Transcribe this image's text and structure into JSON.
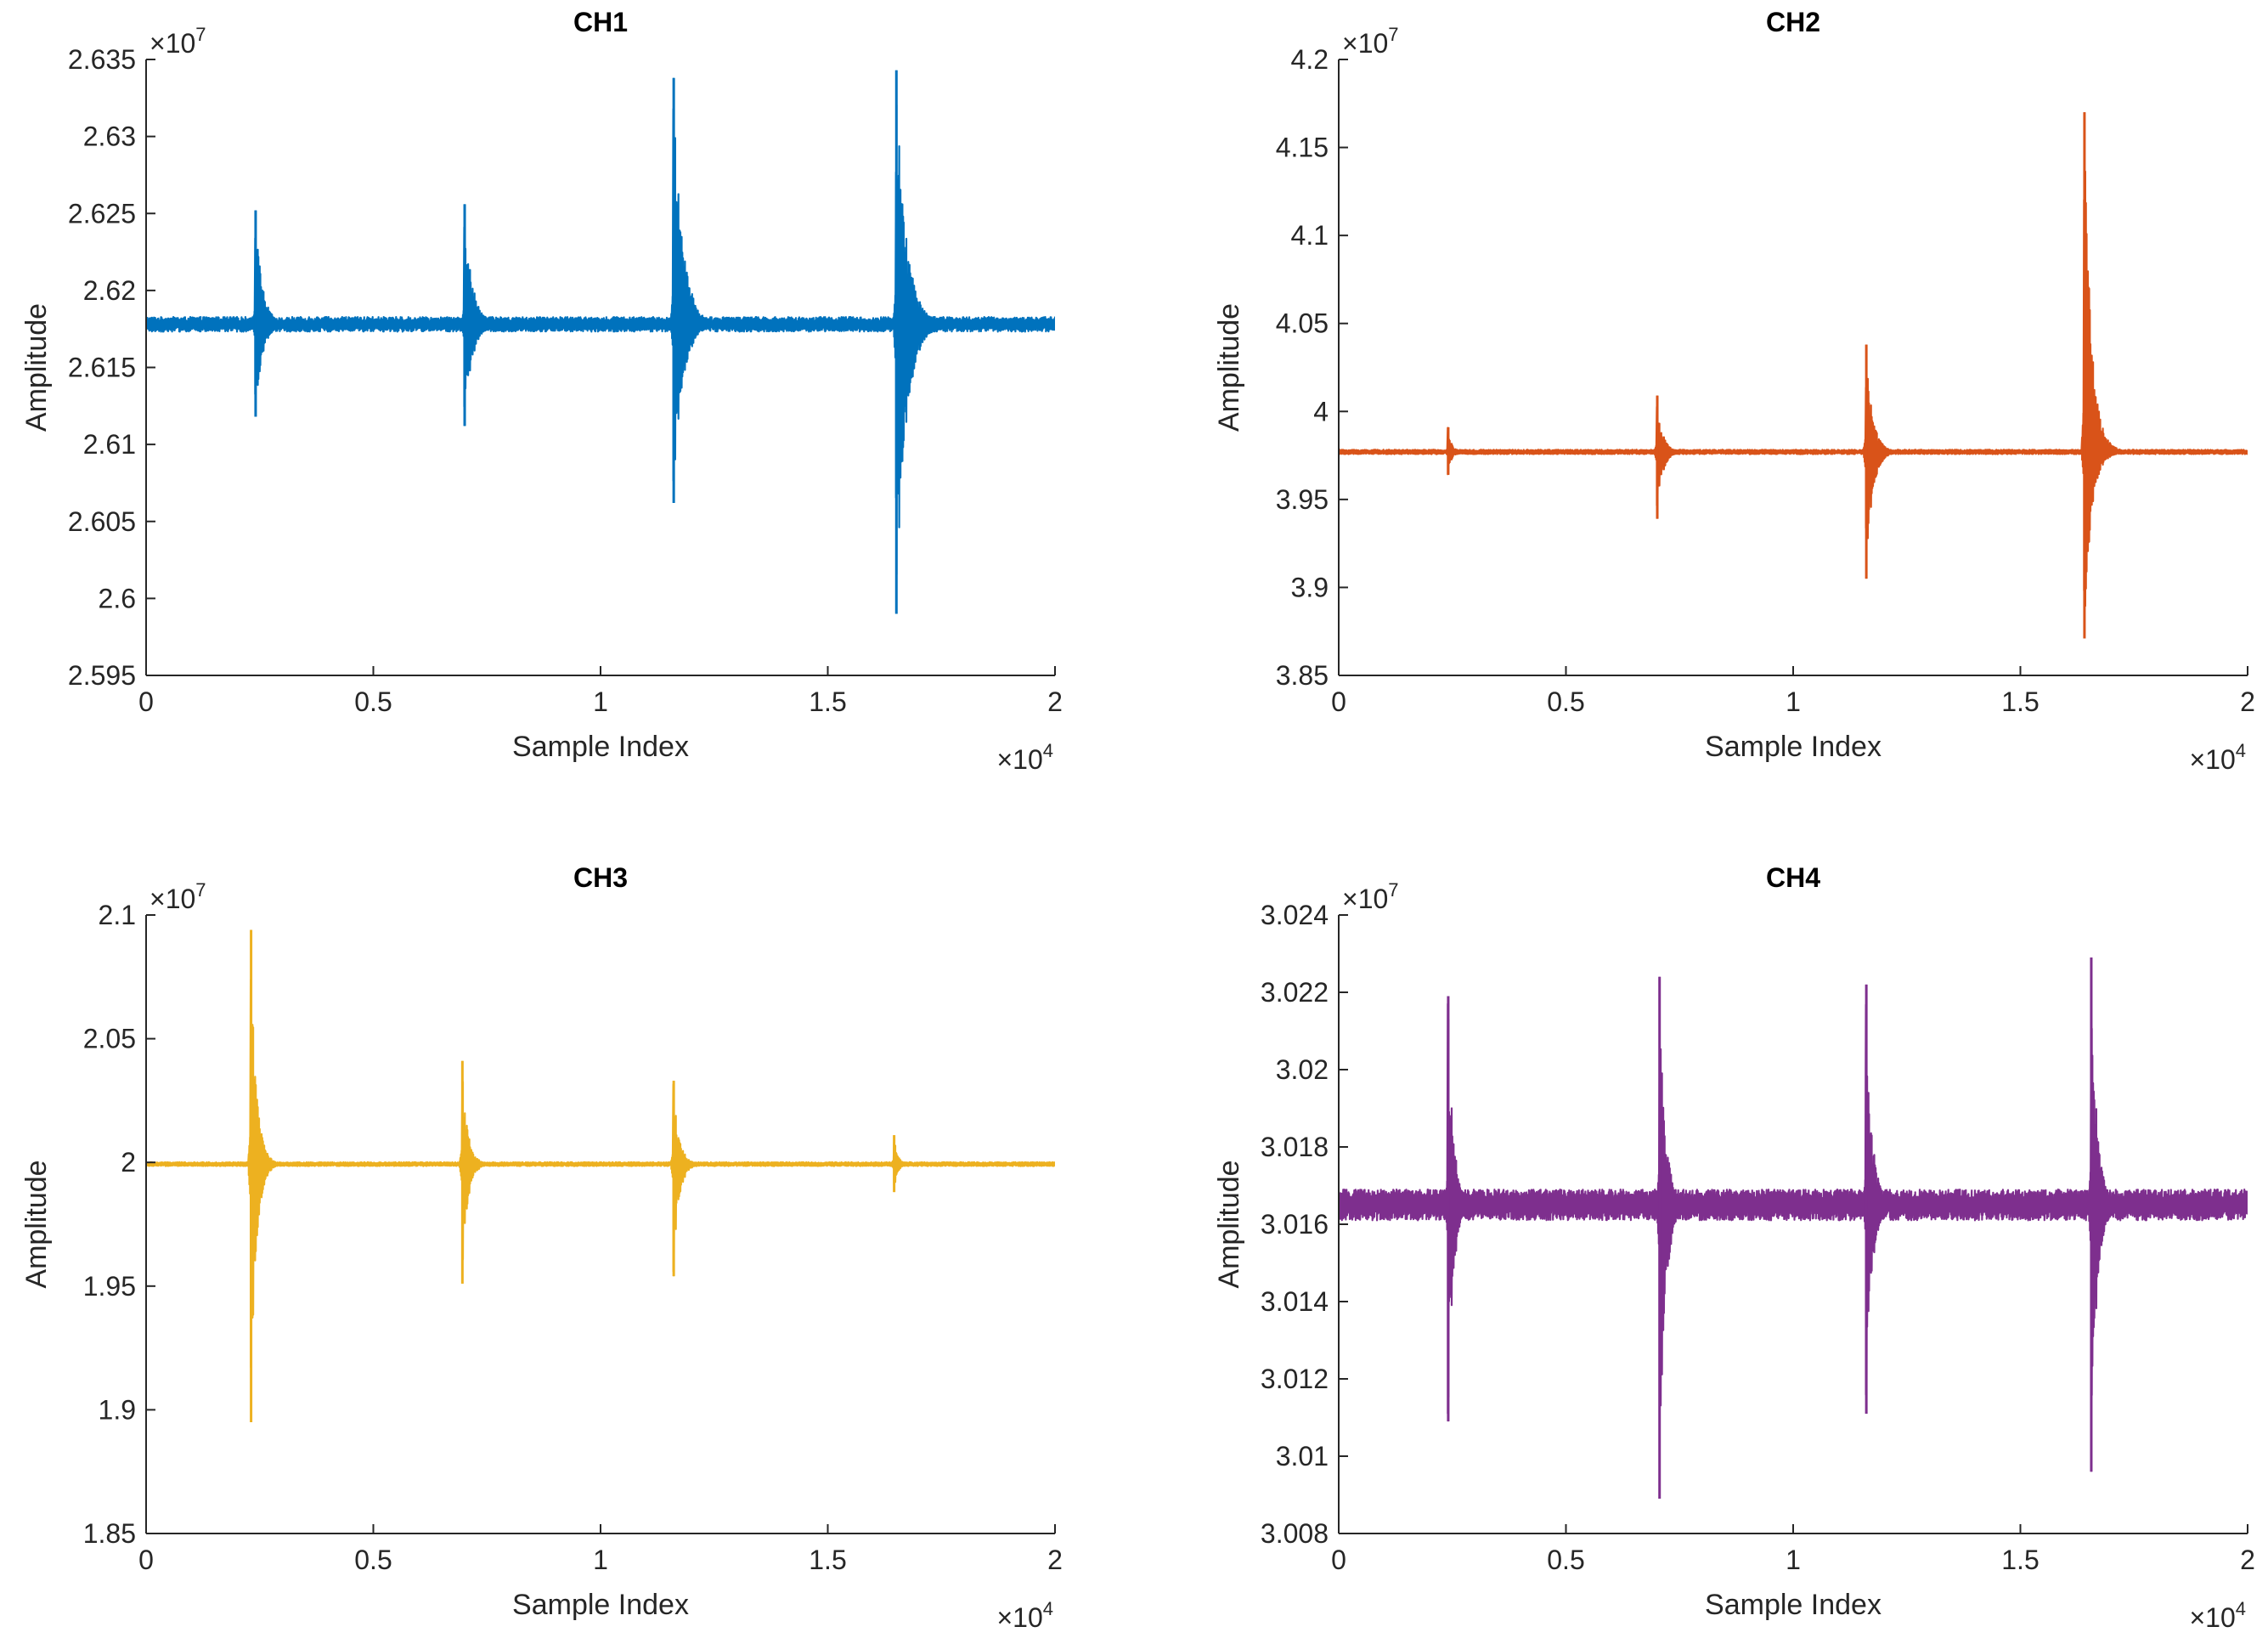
{
  "figure": {
    "xlabel": "Sample Index",
    "ylabel": "Amplitude",
    "x_exponent_base": "×10",
    "x_exponent": "4",
    "y_exponent_base": "×10",
    "y_exponent": "7",
    "axis_color": "#262626"
  },
  "chart_data": [
    {
      "type": "line",
      "name": "ch1",
      "title": "CH1",
      "color": "#0072BD",
      "xlim": [
        0,
        2
      ],
      "ylim": [
        2.595,
        2.635
      ],
      "xticks": [
        "0",
        "0.5",
        "1",
        "1.5",
        "2"
      ],
      "xtick_values": [
        0,
        0.5,
        1,
        1.5,
        2
      ],
      "yticks": [
        "2.595",
        "2.6",
        "2.605",
        "2.61",
        "2.615",
        "2.62",
        "2.625",
        "2.63",
        "2.635"
      ],
      "ytick_values": [
        2.595,
        2.6,
        2.605,
        2.61,
        2.615,
        2.62,
        2.625,
        2.63,
        2.635
      ],
      "baseline": 2.6178,
      "noise": 0.0003,
      "bursts": [
        {
          "x": 0.24,
          "max": 2.6252,
          "min": 2.6118,
          "decay": 0.015
        },
        {
          "x": 0.7,
          "max": 2.6256,
          "min": 2.6112,
          "decay": 0.017
        },
        {
          "x": 1.16,
          "max": 2.6338,
          "min": 2.6062,
          "decay": 0.02
        },
        {
          "x": 1.65,
          "max": 2.6343,
          "min": 2.599,
          "decay": 0.022
        }
      ]
    },
    {
      "type": "line",
      "name": "ch2",
      "title": "CH2",
      "color": "#D95319",
      "xlim": [
        0,
        2
      ],
      "ylim": [
        3.85,
        4.2
      ],
      "xticks": [
        "0",
        "0.5",
        "1",
        "1.5",
        "2"
      ],
      "xtick_values": [
        0,
        0.5,
        1,
        1.5,
        2
      ],
      "yticks": [
        "3.85",
        "3.9",
        "3.95",
        "4",
        "4.05",
        "4.1",
        "4.15",
        "4.2"
      ],
      "ytick_values": [
        3.85,
        3.9,
        3.95,
        4.0,
        4.05,
        4.1,
        4.15,
        4.2
      ],
      "baseline": 3.977,
      "noise": 0.0008,
      "bursts": [
        {
          "x": 0.24,
          "max": 3.991,
          "min": 3.964,
          "decay": 0.008
        },
        {
          "x": 0.7,
          "max": 4.009,
          "min": 3.939,
          "decay": 0.012
        },
        {
          "x": 1.16,
          "max": 4.038,
          "min": 3.905,
          "decay": 0.014
        },
        {
          "x": 1.64,
          "max": 4.17,
          "min": 3.871,
          "decay": 0.016
        }
      ]
    },
    {
      "type": "line",
      "name": "ch3",
      "title": "CH3",
      "color": "#EDB120",
      "xlim": [
        0,
        2
      ],
      "ylim": [
        1.85,
        2.1
      ],
      "xticks": [
        "0",
        "0.5",
        "1",
        "1.5",
        "2"
      ],
      "xtick_values": [
        0,
        0.5,
        1,
        1.5,
        2
      ],
      "yticks": [
        "1.85",
        "1.9",
        "1.95",
        "2",
        "2.05",
        "2.1"
      ],
      "ytick_values": [
        1.85,
        1.9,
        1.95,
        2.0,
        2.05,
        2.1
      ],
      "baseline": 1.9993,
      "noise": 0.0005,
      "bursts": [
        {
          "x": 0.23,
          "max": 2.094,
          "min": 1.895,
          "decay": 0.012
        },
        {
          "x": 0.695,
          "max": 2.041,
          "min": 1.951,
          "decay": 0.012
        },
        {
          "x": 1.16,
          "max": 2.033,
          "min": 1.954,
          "decay": 0.012
        },
        {
          "x": 1.645,
          "max": 2.011,
          "min": 1.988,
          "decay": 0.008
        }
      ]
    },
    {
      "type": "line",
      "name": "ch4",
      "title": "CH4",
      "color": "#7E2F8E",
      "xlim": [
        0,
        2
      ],
      "ylim": [
        3.008,
        3.024
      ],
      "xticks": [
        "0",
        "0.5",
        "1",
        "1.5",
        "2"
      ],
      "xtick_values": [
        0,
        0.5,
        1,
        1.5,
        2
      ],
      "yticks": [
        "3.008",
        "3.01",
        "3.012",
        "3.014",
        "3.016",
        "3.018",
        "3.02",
        "3.022",
        "3.024"
      ],
      "ytick_values": [
        3.008,
        3.01,
        3.012,
        3.014,
        3.016,
        3.018,
        3.02,
        3.022,
        3.024
      ],
      "baseline": 3.0165,
      "noise": 0.00025,
      "bursts": [
        {
          "x": 0.24,
          "max": 3.0219,
          "min": 3.0109,
          "decay": 0.012
        },
        {
          "x": 0.705,
          "max": 3.0224,
          "min": 3.0089,
          "decay": 0.014
        },
        {
          "x": 1.16,
          "max": 3.0222,
          "min": 3.0111,
          "decay": 0.013
        },
        {
          "x": 1.655,
          "max": 3.0229,
          "min": 3.0096,
          "decay": 0.013
        }
      ]
    }
  ]
}
